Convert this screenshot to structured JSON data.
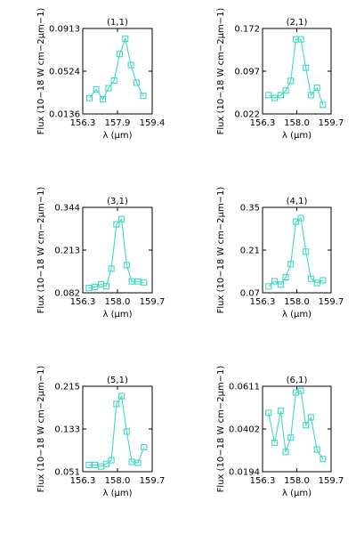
{
  "series_color": "#3fd9bf",
  "chart_data": [
    {
      "type": "line",
      "title": "(1,1)",
      "xlabel": "λ (μm)",
      "ylabel": "Flux (10−18 W cm−2μm−1)",
      "xlim": [
        156.3,
        159.4
      ],
      "ylim": [
        0.0136,
        0.0913
      ],
      "xticks": [
        "156.3",
        "157.9",
        "159.4"
      ],
      "yticks": [
        "0.0136",
        "0.0524",
        "0.0913"
      ],
      "x": [
        156.6,
        156.9,
        157.2,
        157.45,
        157.7,
        157.95,
        158.2,
        158.45,
        158.7,
        159.0
      ],
      "y": [
        0.028,
        0.036,
        0.027,
        0.037,
        0.044,
        0.068,
        0.082,
        0.058,
        0.042,
        0.03
      ]
    },
    {
      "type": "line",
      "title": "(2,1)",
      "xlabel": "λ (μm)",
      "ylabel": "Flux (10−18 W cm−2μm−1)",
      "xlim": [
        156.3,
        159.7
      ],
      "ylim": [
        0.022,
        0.172
      ],
      "xticks": [
        "156.3",
        "158.0",
        "159.7"
      ],
      "yticks": [
        "0.022",
        "0.097",
        "0.172"
      ],
      "x": [
        156.6,
        156.9,
        157.2,
        157.45,
        157.7,
        157.95,
        158.2,
        158.45,
        158.7,
        159.0,
        159.3
      ],
      "y": [
        0.055,
        0.05,
        0.055,
        0.063,
        0.08,
        0.153,
        0.153,
        0.103,
        0.055,
        0.068,
        0.038
      ]
    },
    {
      "type": "line",
      "title": "(3,1)",
      "xlabel": "λ (μm)",
      "ylabel": "Flux (10−18 W cm−2μm−1)",
      "xlim": [
        156.3,
        159.7
      ],
      "ylim": [
        0.082,
        0.344
      ],
      "xticks": [
        "156.3",
        "158.0",
        "159.7"
      ],
      "yticks": [
        "0.082",
        "0.213",
        "0.344"
      ],
      "x": [
        156.6,
        156.9,
        157.2,
        157.45,
        157.7,
        157.95,
        158.2,
        158.45,
        158.7,
        159.0,
        159.3
      ],
      "y": [
        0.097,
        0.1,
        0.108,
        0.102,
        0.156,
        0.292,
        0.308,
        0.167,
        0.117,
        0.117,
        0.114
      ]
    },
    {
      "type": "line",
      "title": "(4,1)",
      "xlabel": "λ (μm)",
      "ylabel": "Flux (10−18 W cm−2μm−1)",
      "xlim": [
        156.3,
        159.7
      ],
      "ylim": [
        0.07,
        0.35
      ],
      "xticks": [
        "156.3",
        "158.0",
        "159.7"
      ],
      "yticks": [
        "0.07",
        "0.21",
        "0.35"
      ],
      "x": [
        156.6,
        156.9,
        157.2,
        157.45,
        157.7,
        157.95,
        158.2,
        158.45,
        158.7,
        159.0,
        159.3
      ],
      "y": [
        0.091,
        0.108,
        0.097,
        0.121,
        0.164,
        0.303,
        0.315,
        0.205,
        0.116,
        0.102,
        0.111
      ]
    },
    {
      "type": "line",
      "title": "(5,1)",
      "xlabel": "λ (μm)",
      "ylabel": "Flux (10−18 W cm−2μm−1)",
      "xlim": [
        156.3,
        159.7
      ],
      "ylim": [
        0.051,
        0.215
      ],
      "xticks": [
        "156.3",
        "158.0",
        "159.7"
      ],
      "yticks": [
        "0.051",
        "0.133",
        "0.215"
      ],
      "x": [
        156.6,
        156.9,
        157.2,
        157.45,
        157.7,
        157.95,
        158.2,
        158.45,
        158.7,
        159.0,
        159.3
      ],
      "y": [
        0.064,
        0.064,
        0.061,
        0.066,
        0.073,
        0.181,
        0.196,
        0.128,
        0.07,
        0.068,
        0.098
      ]
    },
    {
      "type": "line",
      "title": "(6,1)",
      "xlabel": "λ (μm)",
      "ylabel": "Flux (10−18 W cm−2μm−1)",
      "xlim": [
        156.3,
        159.7
      ],
      "ylim": [
        0.0194,
        0.0611
      ],
      "xticks": [
        "156.3",
        "158.0",
        "159.7"
      ],
      "yticks": [
        "0.0194",
        "0.0402",
        "0.0611"
      ],
      "x": [
        156.6,
        156.9,
        157.2,
        157.45,
        157.7,
        157.95,
        158.2,
        158.45,
        158.7,
        159.0,
        159.3
      ],
      "y": [
        0.0481,
        0.0335,
        0.0491,
        0.029,
        0.036,
        0.058,
        0.0589,
        0.0421,
        0.0459,
        0.0302,
        0.0256
      ]
    }
  ]
}
